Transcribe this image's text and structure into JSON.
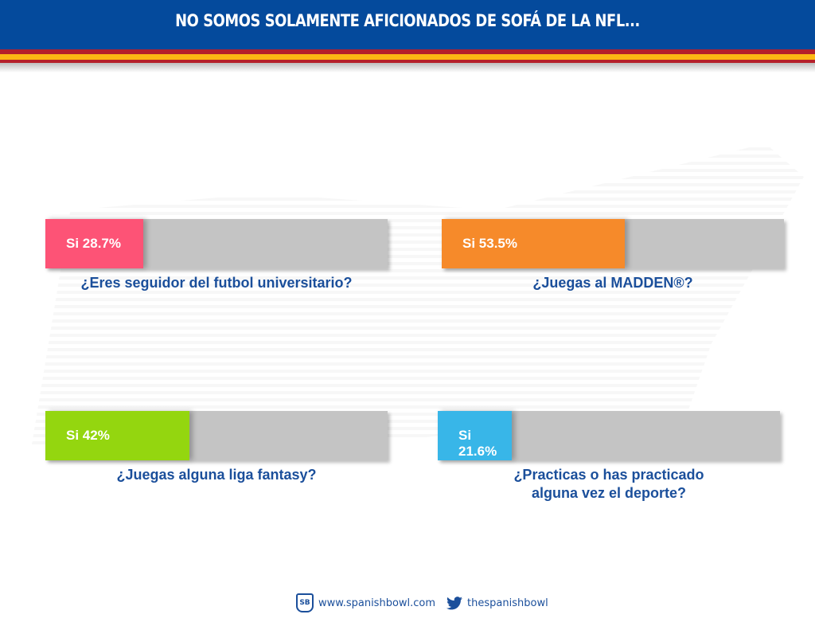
{
  "header": {
    "title": "NO SOMOS SOLAMENTE AFICIONADOS DE SOFÁ DE LA NFL..."
  },
  "chart_data": {
    "type": "bar",
    "title": "NO SOMOS SOLAMENTE AFICIONADOS DE SOFÁ DE LA NFL...",
    "items": [
      {
        "question": "¿Eres seguidor del futbol universitario?",
        "label": "Si 28.7%",
        "value": 28.7,
        "color": "#fd5376"
      },
      {
        "question": "¿Juegas al MADDEN®?",
        "label": "Si 53.5%",
        "value": 53.5,
        "color": "#f68a2a"
      },
      {
        "question": "¿Juegas alguna liga fantasy?",
        "label": "Si 42%",
        "value": 42,
        "color": "#94d60f"
      },
      {
        "question": "¿Practicas o has practicado alguna vez el deporte?",
        "label": "Si 21.6%",
        "value": 21.6,
        "color": "#38b6e8"
      }
    ],
    "ylim": [
      0,
      100
    ]
  },
  "footer": {
    "logo": "SB",
    "website": "www.spanishbowl.com",
    "twitter": "thespanishbowl"
  }
}
